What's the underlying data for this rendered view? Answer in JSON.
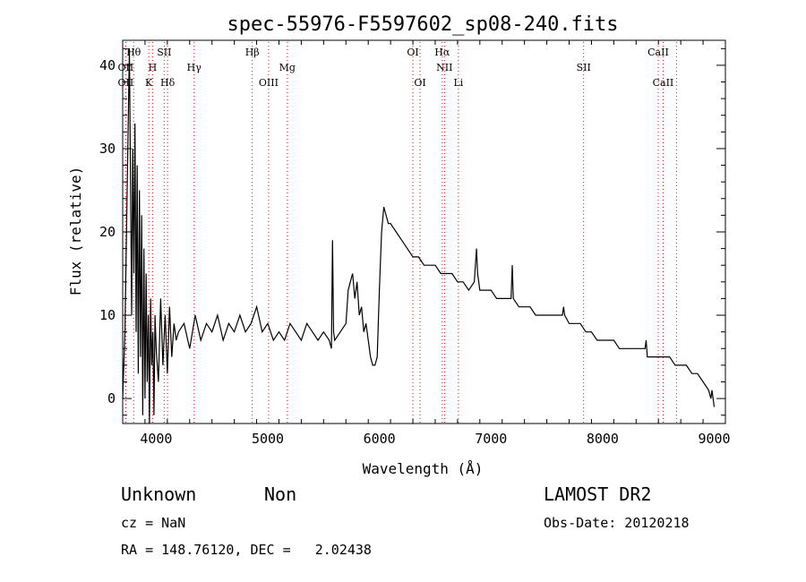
{
  "chart_data": {
    "type": "line",
    "title": "spec-55976-F5597602_sp08-240.fits",
    "xlabel": "Wavelength (Å)",
    "ylabel": "Flux (relative)",
    "xlim": [
      3700,
      9100
    ],
    "ylim": [
      -3,
      43
    ],
    "xticks": [
      4000,
      5000,
      6000,
      7000,
      8000,
      9000
    ],
    "yticks": [
      0,
      10,
      20,
      30,
      40
    ],
    "series": [
      {
        "color": "#000000",
        "x": [
          3700,
          3720,
          3740,
          3760,
          3780,
          3790,
          3800,
          3810,
          3820,
          3830,
          3840,
          3850,
          3860,
          3870,
          3880,
          3890,
          3900,
          3910,
          3920,
          3930,
          3940,
          3950,
          3960,
          3970,
          3980,
          3990,
          4000,
          4020,
          4040,
          4060,
          4080,
          4100,
          4120,
          4140,
          4160,
          4180,
          4200,
          4250,
          4300,
          4350,
          4400,
          4450,
          4500,
          4550,
          4600,
          4650,
          4700,
          4750,
          4800,
          4850,
          4900,
          4950,
          5000,
          5050,
          5100,
          5150,
          5200,
          5250,
          5300,
          5350,
          5400,
          5450,
          5500,
          5550,
          5570,
          5580,
          5590,
          5600,
          5650,
          5700,
          5720,
          5740,
          5760,
          5780,
          5800,
          5820,
          5840,
          5860,
          5880,
          5900,
          5920,
          5940,
          5960,
          5980,
          6000,
          6020,
          6040,
          6060,
          6080,
          6100,
          6150,
          6200,
          6250,
          6300,
          6350,
          6400,
          6450,
          6500,
          6550,
          6600,
          6650,
          6700,
          6750,
          6800,
          6850,
          6870,
          6880,
          6890,
          6900,
          6950,
          7000,
          7050,
          7100,
          7150,
          7180,
          7190,
          7200,
          7250,
          7300,
          7350,
          7400,
          7450,
          7500,
          7550,
          7600,
          7640,
          7650,
          7660,
          7700,
          7750,
          7800,
          7850,
          7900,
          7950,
          8000,
          8050,
          8100,
          8150,
          8200,
          8250,
          8300,
          8350,
          8380,
          8390,
          8400,
          8450,
          8500,
          8550,
          8600,
          8650,
          8700,
          8750,
          8800,
          8850,
          8900,
          8950,
          8970,
          8980,
          9000
        ],
        "y": [
          0,
          8,
          25,
          42,
          10,
          30,
          15,
          33,
          8,
          28,
          3,
          25,
          5,
          22,
          -2,
          18,
          0,
          15,
          2,
          10,
          -3,
          12,
          4,
          8,
          -2,
          10,
          6,
          2,
          12,
          4,
          10,
          3,
          11,
          5,
          9,
          7,
          8,
          9,
          6,
          10,
          7,
          9,
          8,
          10,
          7,
          9,
          8,
          10,
          8,
          9,
          11,
          8,
          9,
          7,
          8,
          7,
          9,
          8,
          7,
          9,
          8,
          7,
          8,
          7,
          6,
          19,
          8,
          7,
          8,
          9,
          13,
          14,
          15,
          12,
          14,
          10,
          11,
          8,
          9,
          7,
          5,
          4,
          4,
          5,
          13,
          20,
          23,
          22,
          21,
          21,
          20,
          19,
          18,
          17,
          17,
          16,
          16,
          16,
          15,
          15,
          15,
          14,
          14,
          13,
          14,
          18,
          15,
          14,
          13,
          13,
          13,
          12,
          12,
          12,
          12,
          16,
          12,
          11,
          11,
          11,
          10,
          10,
          10,
          10,
          10,
          10,
          11,
          10,
          9,
          9,
          9,
          8,
          8,
          7,
          7,
          7,
          7,
          6,
          6,
          6,
          6,
          6,
          6,
          7,
          5,
          5,
          5,
          5,
          5,
          4,
          4,
          4,
          3,
          3,
          2,
          1,
          0,
          1,
          -1
        ]
      }
    ],
    "line_markers": [
      {
        "label": "Hθ",
        "x": 3798,
        "row": 1
      },
      {
        "label": "OII",
        "x": 3727,
        "row": 2
      },
      {
        "label": "OII",
        "x": 3727,
        "row": 3
      },
      {
        "label": "SII",
        "x": 4072,
        "row": 1
      },
      {
        "label": "H",
        "x": 3968,
        "row": 2
      },
      {
        "label": "K",
        "x": 3934,
        "row": 3
      },
      {
        "label": "Hδ",
        "x": 4102,
        "row": 3
      },
      {
        "label": "Hγ",
        "x": 4340,
        "row": 2
      },
      {
        "label": "Hβ",
        "x": 4861,
        "row": 1
      },
      {
        "label": "Mg",
        "x": 5175,
        "row": 2
      },
      {
        "label": "OIII",
        "x": 5007,
        "row": 3
      },
      {
        "label": "OI",
        "x": 6300,
        "row": 1
      },
      {
        "label": "OI",
        "x": 6364,
        "row": 3
      },
      {
        "label": "Hα",
        "x": 6563,
        "row": 1
      },
      {
        "label": "NII",
        "x": 6583,
        "row": 2
      },
      {
        "label": "Li",
        "x": 6708,
        "row": 3
      },
      {
        "label": "SII",
        "x": 7830,
        "row": 2
      },
      {
        "label": "CaII",
        "x": 8498,
        "row": 1
      },
      {
        "label": "CaII",
        "x": 8542,
        "row": 3
      },
      {
        "label": "",
        "x": 8662,
        "row": 0
      }
    ],
    "line_marker_color": "#ff0000"
  },
  "info": {
    "class": "Unknown",
    "subclass": "Non",
    "survey": "LAMOST DR2",
    "cz": "cz = NaN",
    "obs_date": "Obs-Date: 20120218",
    "coords": "RA = 148.76120, DEC =   2.02438"
  }
}
